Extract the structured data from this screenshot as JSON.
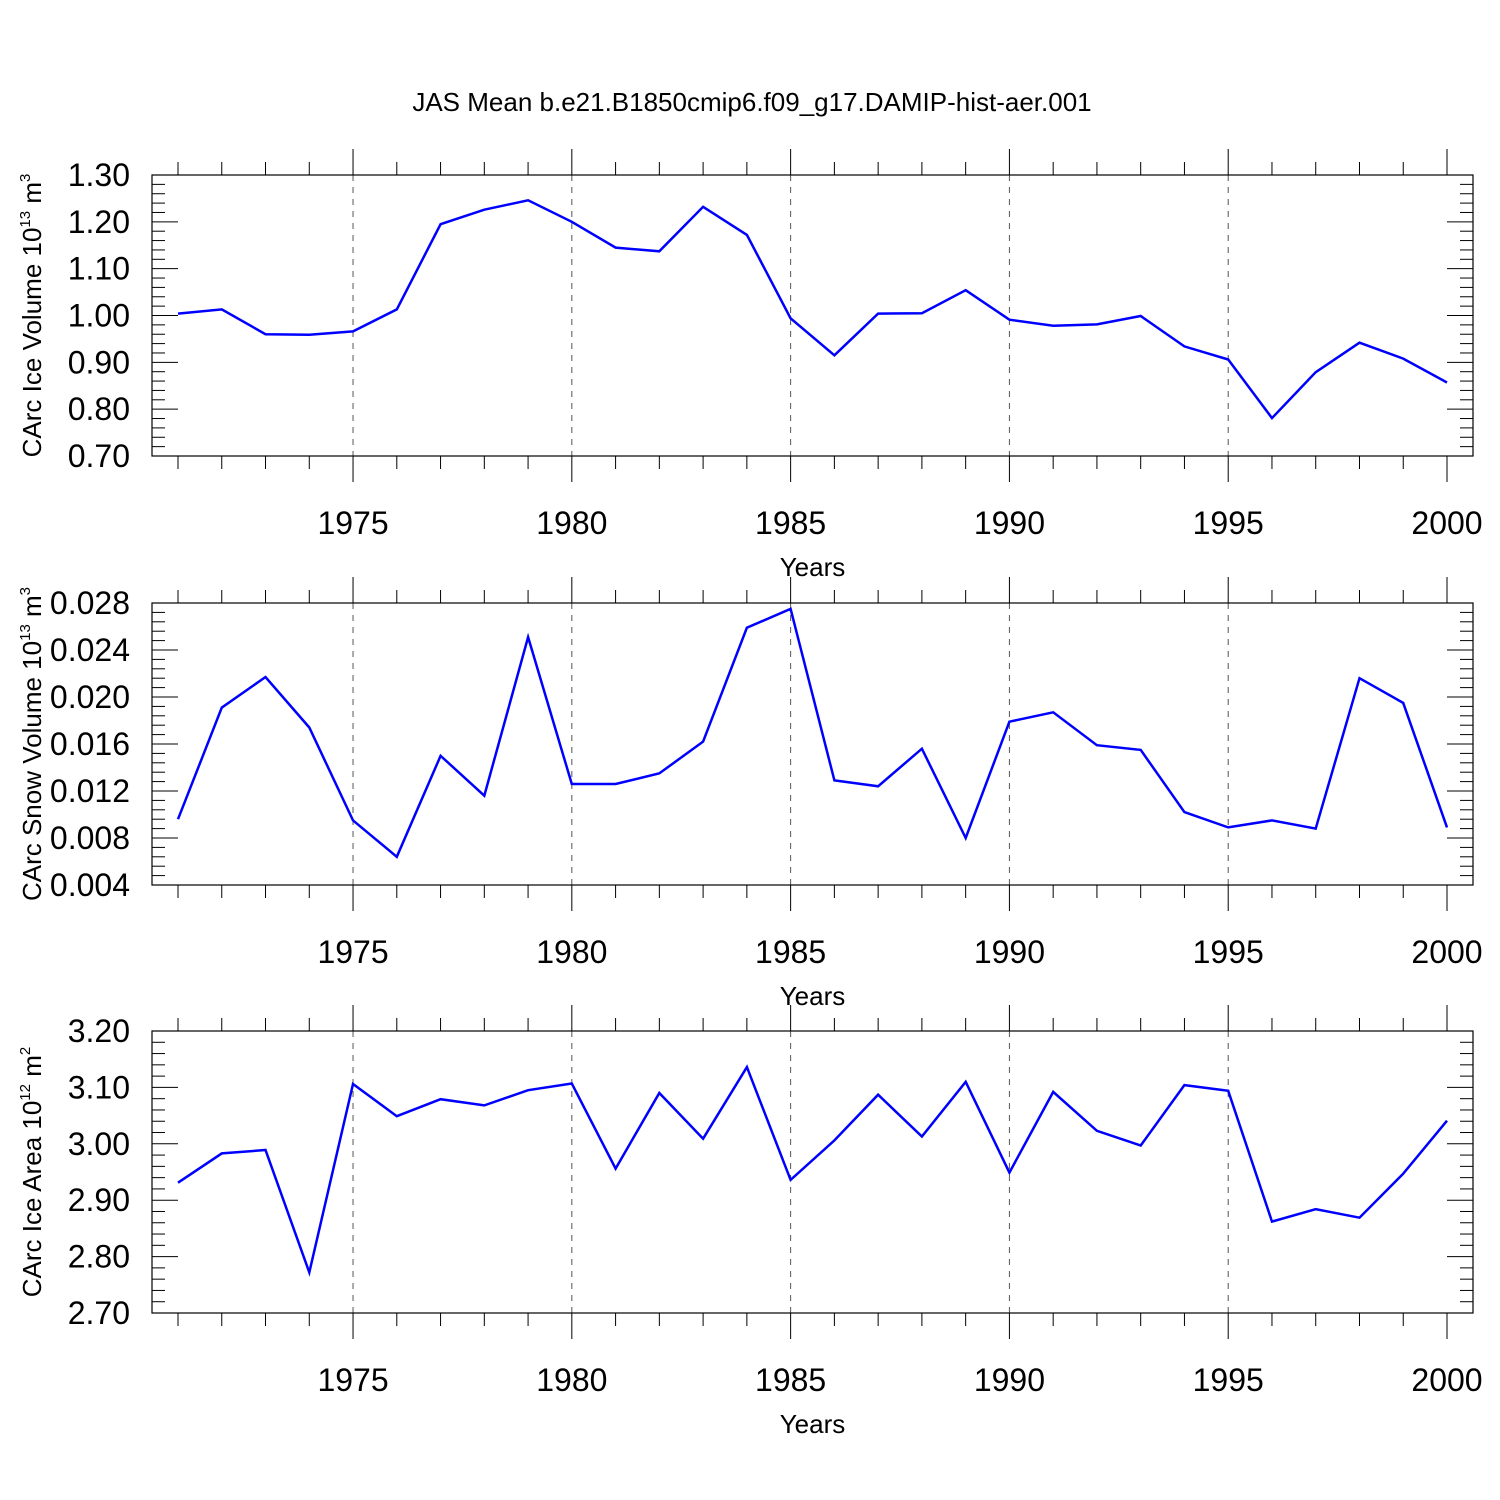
{
  "title": "JAS Mean b.e21.B1850cmip6.f09_g17.DAMIP-hist-aer.001",
  "chart_data": [
    {
      "type": "line",
      "title": "",
      "xlabel": "Years",
      "ylabel_main": "CArc Ice Volume 10",
      "ylabel_exp": "13",
      "ylabel_unit": " m",
      "ylabel_unit_exp": "3",
      "xlim": [
        1971,
        2000
      ],
      "ylim": [
        0.7,
        1.3
      ],
      "x_ticks": [
        1975,
        1980,
        1985,
        1990,
        1995,
        2000
      ],
      "y_ticks": [
        "0.70",
        "0.80",
        "0.90",
        "1.00",
        "1.10",
        "1.20",
        "1.30"
      ],
      "y_tick_values": [
        0.7,
        0.8,
        0.9,
        1.0,
        1.1,
        1.2,
        1.3
      ],
      "y_minor_step": 0.02,
      "grid": "vertical dashed at major x ticks",
      "series_color": "#0000ff",
      "x": [
        1971,
        1972,
        1973,
        1974,
        1975,
        1976,
        1977,
        1978,
        1979,
        1980,
        1981,
        1982,
        1983,
        1984,
        1985,
        1986,
        1987,
        1988,
        1989,
        1990,
        1991,
        1992,
        1993,
        1994,
        1995,
        1996,
        1997,
        1998,
        1999,
        2000
      ],
      "values": [
        1.004,
        1.013,
        0.96,
        0.959,
        0.966,
        1.013,
        1.195,
        1.226,
        1.246,
        1.2,
        1.145,
        1.137,
        1.232,
        1.172,
        0.994,
        0.915,
        1.004,
        1.005,
        1.054,
        0.991,
        0.978,
        0.981,
        0.999,
        0.934,
        0.906,
        0.781,
        0.879,
        0.942,
        0.908,
        0.857
      ]
    },
    {
      "type": "line",
      "title": "",
      "xlabel": "Years",
      "ylabel_main": "CArc Snow Volume 10",
      "ylabel_exp": "13",
      "ylabel_unit": " m",
      "ylabel_unit_exp": "3",
      "xlim": [
        1971,
        2000
      ],
      "ylim": [
        0.004,
        0.028
      ],
      "x_ticks": [
        1975,
        1980,
        1985,
        1990,
        1995,
        2000
      ],
      "y_ticks": [
        "0.004",
        "0.008",
        "0.012",
        "0.016",
        "0.020",
        "0.024",
        "0.028"
      ],
      "y_tick_values": [
        0.004,
        0.008,
        0.012,
        0.016,
        0.02,
        0.024,
        0.028
      ],
      "y_minor_step": 0.0008,
      "grid": "vertical dashed at major x ticks",
      "series_color": "#0000ff",
      "x": [
        1971,
        1972,
        1973,
        1974,
        1975,
        1976,
        1977,
        1978,
        1979,
        1980,
        1981,
        1982,
        1983,
        1984,
        1985,
        1986,
        1987,
        1988,
        1989,
        1990,
        1991,
        1992,
        1993,
        1994,
        1995,
        1996,
        1997,
        1998,
        1999,
        2000
      ],
      "values": [
        0.0096,
        0.0191,
        0.0217,
        0.0174,
        0.0095,
        0.0064,
        0.015,
        0.0116,
        0.0251,
        0.0126,
        0.0126,
        0.0135,
        0.0162,
        0.0259,
        0.0275,
        0.0129,
        0.0124,
        0.0156,
        0.008,
        0.0179,
        0.0187,
        0.0159,
        0.0155,
        0.0102,
        0.0089,
        0.0095,
        0.0088,
        0.0216,
        0.0195,
        0.0089
      ]
    },
    {
      "type": "line",
      "title": "",
      "xlabel": "Years",
      "ylabel_main": "CArc Ice Area 10",
      "ylabel_exp": "12",
      "ylabel_unit": " m",
      "ylabel_unit_exp": "2",
      "xlim": [
        1971,
        2000
      ],
      "ylim": [
        2.7,
        3.2
      ],
      "x_ticks": [
        1975,
        1980,
        1985,
        1990,
        1995,
        2000
      ],
      "y_ticks": [
        "2.70",
        "2.80",
        "2.90",
        "3.00",
        "3.10",
        "3.20"
      ],
      "y_tick_values": [
        2.7,
        2.8,
        2.9,
        3.0,
        3.1,
        3.2
      ],
      "y_minor_step": 0.02,
      "grid": "vertical dashed at major x ticks",
      "series_color": "#0000ff",
      "x": [
        1971,
        1972,
        1973,
        1974,
        1975,
        1976,
        1977,
        1978,
        1979,
        1980,
        1981,
        1982,
        1983,
        1984,
        1985,
        1986,
        1987,
        1988,
        1989,
        1990,
        1991,
        1992,
        1993,
        1994,
        1995,
        1996,
        1997,
        1998,
        1999,
        2000
      ],
      "values": [
        2.931,
        2.983,
        2.989,
        2.772,
        3.106,
        3.049,
        3.079,
        3.068,
        3.095,
        3.107,
        2.956,
        3.09,
        3.009,
        3.136,
        2.936,
        3.006,
        3.087,
        3.013,
        3.11,
        2.949,
        3.092,
        3.023,
        2.997,
        3.104,
        3.094,
        2.862,
        2.884,
        2.869,
        2.947,
        3.041
      ]
    }
  ]
}
